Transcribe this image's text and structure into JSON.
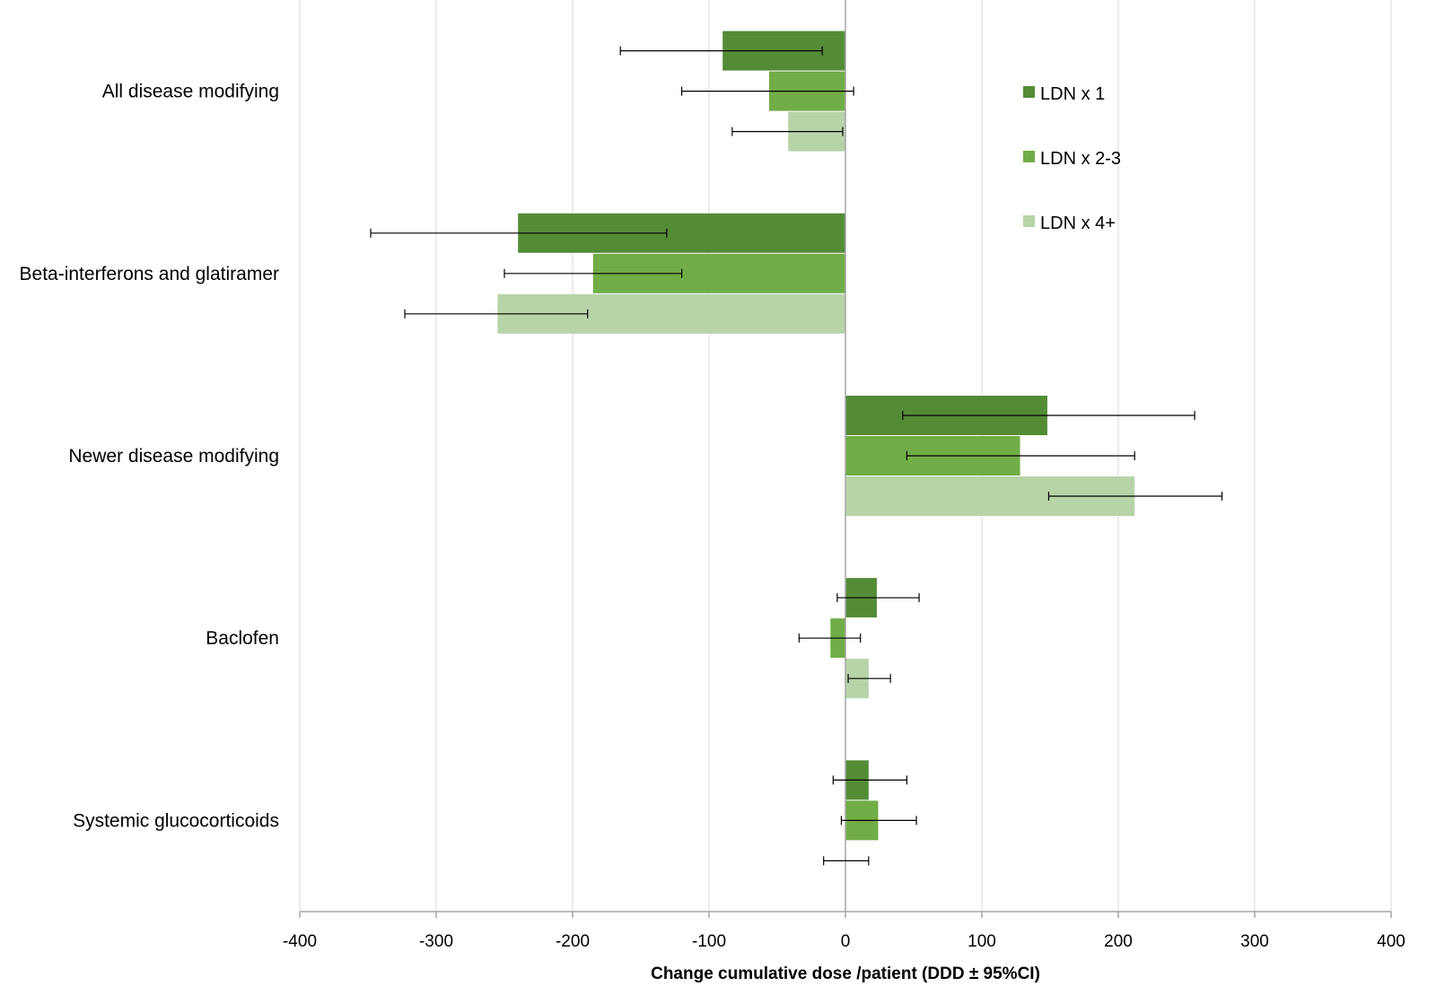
{
  "chart_data": {
    "type": "bar",
    "orientation": "horizontal",
    "title": "",
    "xlabel": "Change cumulative dose /patient (DDD ± 95%CI)",
    "ylabel": "",
    "xlim": [
      -400,
      400
    ],
    "xticks": [
      -400,
      -300,
      -200,
      -100,
      0,
      100,
      200,
      300,
      400
    ],
    "xtick_labels": [
      "-400",
      "-300",
      "-200",
      "-100",
      "0",
      "100",
      "200",
      "300",
      "400"
    ],
    "grid": true,
    "legend_position": "top-right",
    "categories": [
      "All disease modifying",
      "Beta-interferons and glatiramer",
      "Newer disease modifying",
      "Baclofen",
      "Systemic glucocorticoids"
    ],
    "series": [
      {
        "name": "LDN x 1",
        "color": "#548c36",
        "values": [
          -90,
          -240,
          148,
          23,
          17
        ],
        "ci_low": [
          -165,
          -348,
          42,
          -6,
          -9
        ],
        "ci_high": [
          -17,
          -131,
          256,
          54,
          45
        ]
      },
      {
        "name": "LDN x 2-3",
        "color": "#70ad47",
        "values": [
          -56,
          -185,
          128,
          -11,
          24
        ],
        "ci_low": [
          -120,
          -250,
          45,
          -34,
          -3
        ],
        "ci_high": [
          6,
          -120,
          212,
          11,
          52
        ]
      },
      {
        "name": "LDN x 4+",
        "color": "#b6d4a8",
        "values": [
          -42,
          -255,
          212,
          17,
          0
        ],
        "ci_low": [
          -83,
          -323,
          149,
          2,
          -16
        ],
        "ci_high": [
          -2,
          -189,
          276,
          33,
          17
        ]
      }
    ]
  }
}
